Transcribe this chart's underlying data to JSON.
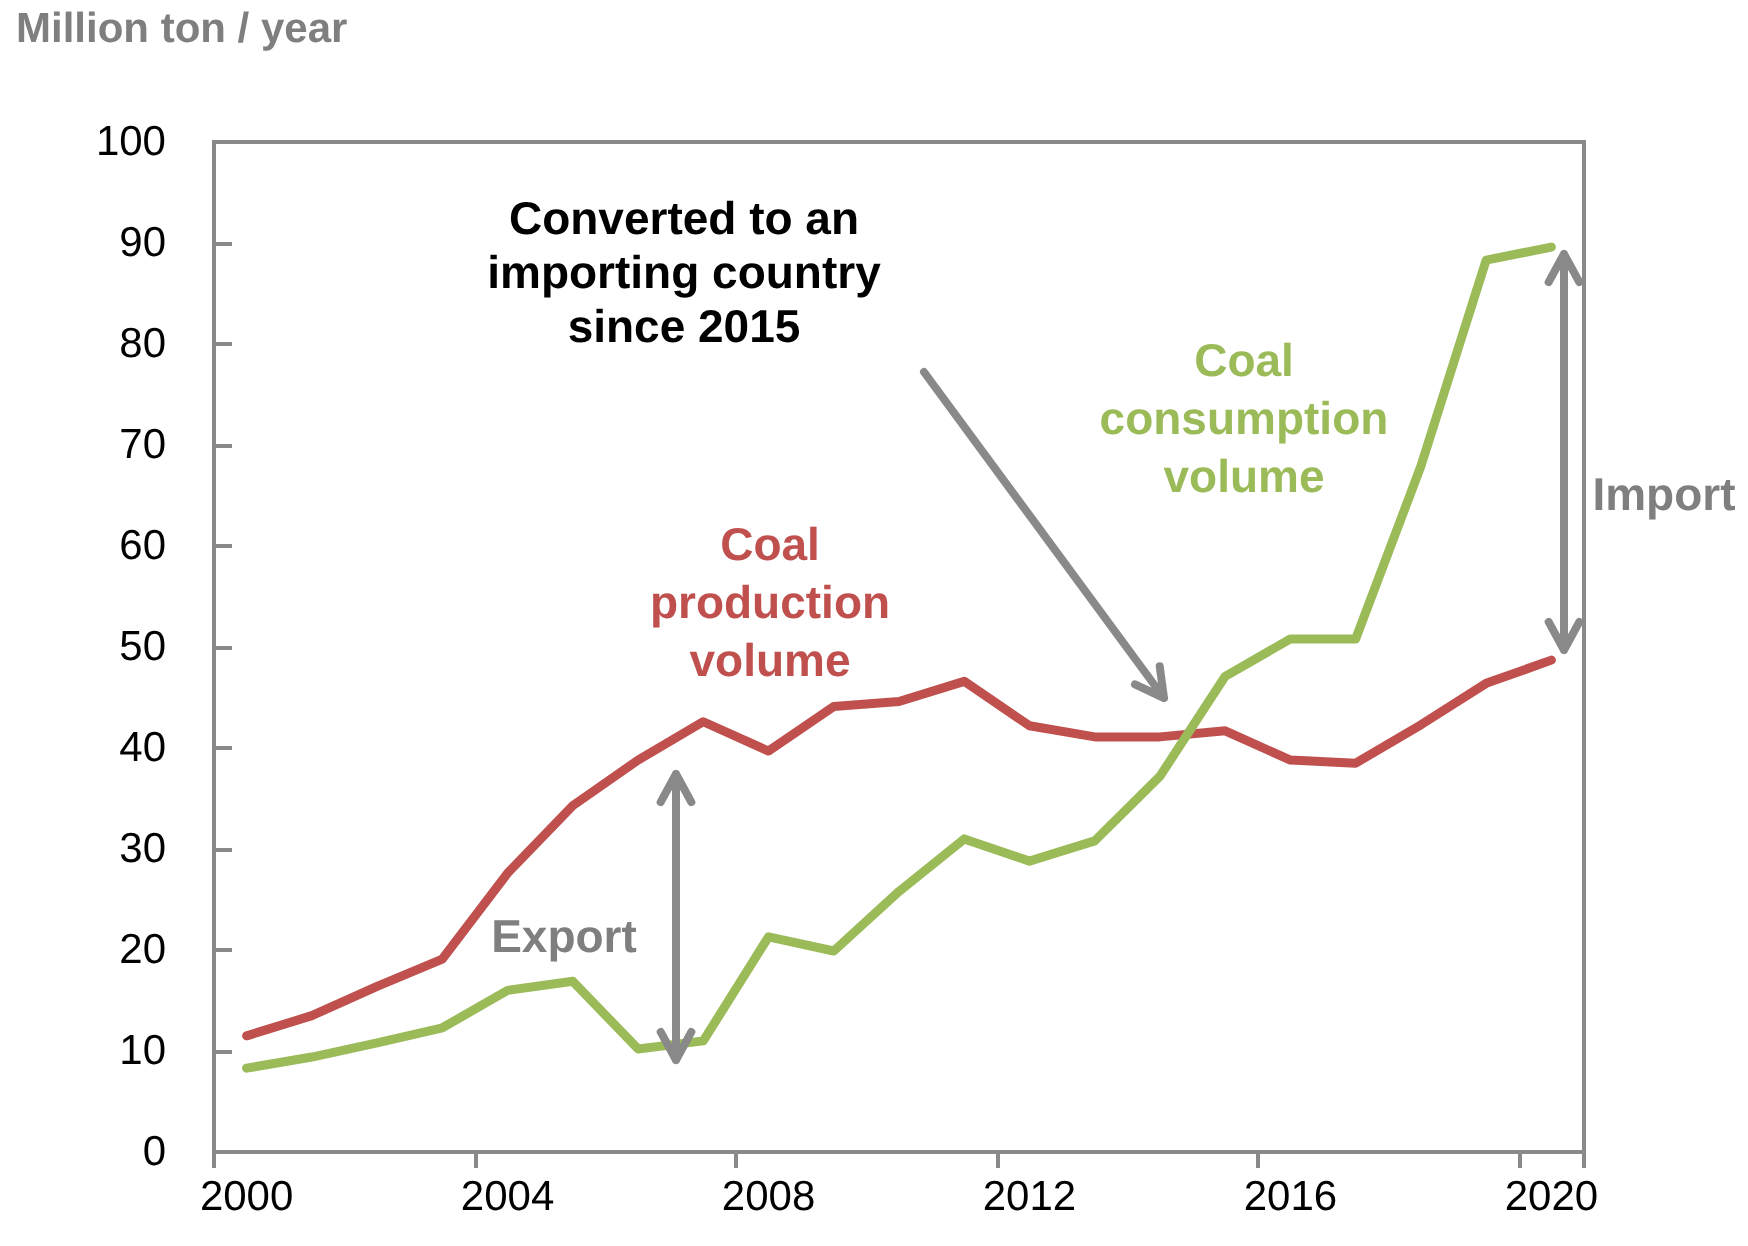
{
  "chart_data": {
    "type": "line",
    "ylabel": "Million ton / year",
    "categories": [
      "2000",
      null,
      null,
      null,
      "2004",
      null,
      null,
      null,
      "2008",
      null,
      null,
      null,
      "2012",
      null,
      null,
      null,
      "2016",
      null,
      null,
      null,
      "2020"
    ],
    "series": [
      {
        "name": "Coal production volume",
        "color": "#c0504d",
        "values": [
          11.5,
          13.5,
          16.4,
          19.1,
          27.6,
          34.3,
          38.8,
          42.6,
          39.7,
          44.1,
          44.6,
          46.6,
          42.2,
          41.1,
          41.1,
          41.7,
          38.8,
          38.5,
          42.3,
          46.4,
          48.7
        ]
      },
      {
        "name": "Coal consumption volume",
        "color": "#9bbb59",
        "values": [
          8.3,
          9.4,
          10.8,
          12.3,
          16.0,
          16.9,
          10.2,
          11.0,
          21.3,
          19.9,
          25.8,
          31.0,
          28.8,
          30.8,
          37.2,
          47.1,
          50.8,
          50.8,
          67.9,
          88.3,
          89.6
        ]
      }
    ],
    "ylim": [
      0,
      100
    ],
    "yticks": [
      0,
      10,
      20,
      30,
      40,
      50,
      60,
      70,
      80,
      90,
      100
    ],
    "grid": false,
    "marker": "none",
    "annotations": [
      "Converted to an importing country since 2015",
      "Export",
      "Import"
    ]
  }
}
